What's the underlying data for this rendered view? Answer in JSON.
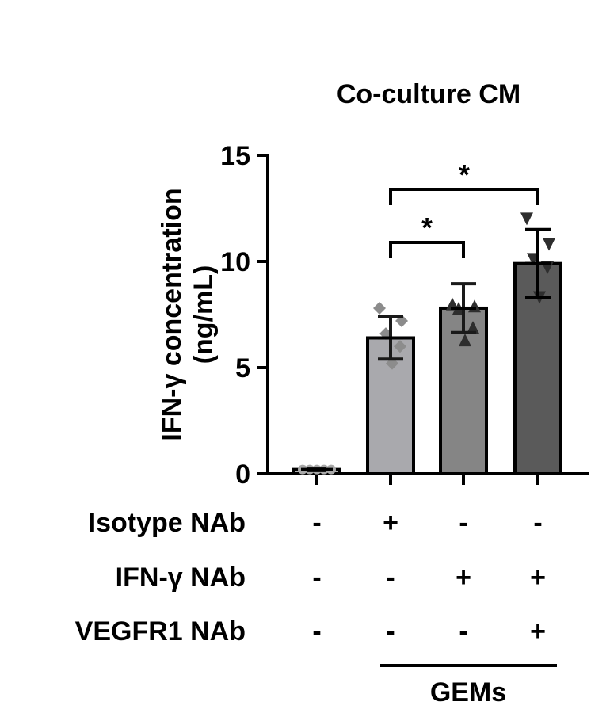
{
  "chart_data": {
    "type": "bar",
    "title": "Co-culture CM",
    "ylabel_line1": "IFN-γ concentration",
    "ylabel_line2": "(ng/mL)",
    "ylim": [
      0,
      15
    ],
    "yticks": [
      0,
      5,
      10,
      15
    ],
    "grid": false,
    "bars": [
      {
        "value": 0.2,
        "error": 0.05,
        "color": "#b0b0b0",
        "marker": "circle",
        "points": [
          0.2,
          0.2,
          0.2,
          0.2,
          0.2
        ]
      },
      {
        "value": 6.4,
        "error": 1.0,
        "color": "#a9a9ad",
        "marker": "diamond",
        "points": [
          7.8,
          7.2,
          6.6,
          6.0,
          5.2
        ]
      },
      {
        "value": 7.8,
        "error": 1.15,
        "color": "#858585",
        "marker": "triangle-up",
        "points": [
          8.0,
          7.9,
          7.8,
          6.9,
          6.3
        ]
      },
      {
        "value": 9.9,
        "error": 1.6,
        "color": "#5a5a5a",
        "marker": "triangle-down",
        "points": [
          12.0,
          10.8,
          10.1,
          9.7,
          8.3
        ]
      }
    ],
    "significance": [
      {
        "from": 1,
        "to": 2,
        "label": "*"
      },
      {
        "from": 1,
        "to": 3,
        "label": "*"
      }
    ],
    "conditions": [
      {
        "label": "Isotype NAb",
        "values": [
          "-",
          "+",
          "-",
          "-"
        ]
      },
      {
        "label": "IFN-γ NAb",
        "values": [
          "-",
          "-",
          "+",
          "+"
        ]
      },
      {
        "label": "VEGFR1 NAb",
        "values": [
          "-",
          "-",
          "-",
          "+"
        ]
      }
    ],
    "group_label": "GEMs"
  }
}
